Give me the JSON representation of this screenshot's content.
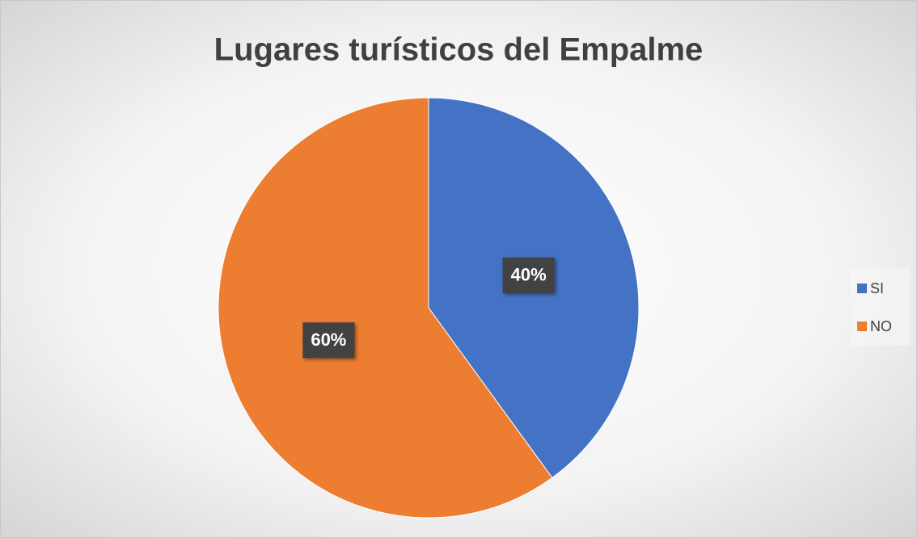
{
  "chart_data": {
    "type": "pie",
    "title": "Lugares turísticos del Empalme",
    "categories": [
      "SI",
      "NO"
    ],
    "values": [
      40,
      60
    ],
    "value_labels": [
      "40%",
      "60%"
    ],
    "colors": [
      "#4472c4",
      "#ed7d31"
    ],
    "legend": "right"
  }
}
